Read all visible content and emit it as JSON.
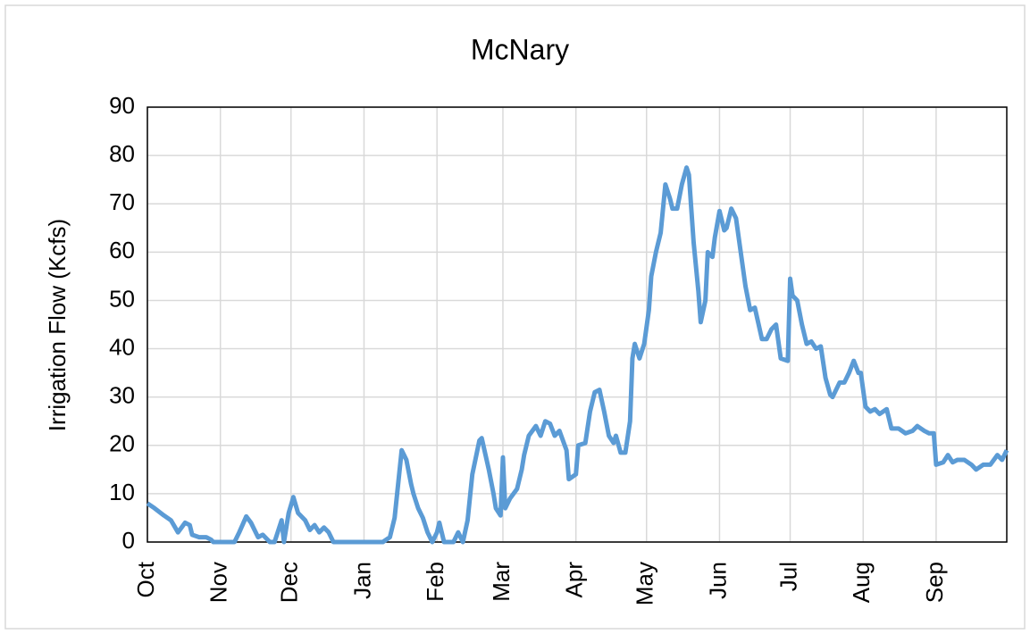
{
  "chart_data": {
    "type": "line",
    "title": "McNary",
    "ylabel": "Irrigation Flow (Kcfs)",
    "x": [
      0,
      3,
      7,
      10,
      13,
      16,
      18,
      19,
      22,
      25,
      27,
      28,
      37,
      39,
      42,
      44,
      47,
      49,
      52,
      54,
      57,
      58,
      60,
      62,
      64,
      67,
      69,
      71,
      73,
      75,
      77,
      79,
      100,
      103,
      105,
      108,
      110,
      112,
      113,
      115,
      117,
      119,
      121,
      123,
      124,
      126,
      130,
      132,
      134,
      136,
      138,
      141,
      142,
      145,
      147,
      148,
      150,
      151,
      152,
      154,
      157,
      159,
      160,
      162,
      165,
      167,
      169,
      171,
      173,
      175,
      178,
      179,
      182,
      183,
      186,
      188,
      190,
      192,
      194,
      196,
      198,
      199,
      201,
      203,
      205,
      206,
      207,
      209,
      211,
      213,
      214,
      216,
      218,
      220,
      222,
      223,
      225,
      227,
      229,
      230,
      232,
      234,
      235,
      237,
      238,
      240,
      241,
      243,
      245,
      246,
      248,
      250,
      252,
      254,
      256,
      258,
      261,
      263,
      265,
      267,
      269,
      272,
      273,
      274,
      276,
      278,
      280,
      282,
      284,
      286,
      288,
      290,
      291,
      294,
      296,
      298,
      300,
      302,
      303,
      305,
      307,
      309,
      311,
      314,
      316,
      319,
      322,
      325,
      327,
      330,
      332,
      334,
      335,
      338,
      340,
      342,
      344,
      347,
      350,
      352,
      355,
      358,
      361,
      363,
      365
    ],
    "series": [
      {
        "name": "McNary",
        "color": "#5b9bd5",
        "values": [
          8,
          7,
          5.5,
          4.5,
          2,
          4,
          3.5,
          1.5,
          1,
          1,
          0.5,
          0,
          0,
          2,
          5.3,
          4,
          1,
          1.5,
          0,
          0,
          4.5,
          0,
          6,
          9.3,
          6,
          4.5,
          2.5,
          3.5,
          2,
          3,
          2,
          0,
          0,
          1,
          5,
          19,
          17,
          12,
          10,
          7,
          5,
          2,
          0,
          2,
          4,
          0,
          0,
          2,
          0,
          4.5,
          14,
          21,
          21.5,
          15,
          10,
          7,
          5.5,
          17.5,
          7,
          9,
          11,
          15,
          18,
          22,
          24,
          22,
          25,
          24.5,
          22,
          23,
          19,
          13,
          14,
          20,
          20.5,
          27,
          31,
          31.5,
          27,
          22,
          20.5,
          22,
          18.5,
          18.5,
          25,
          38,
          41,
          38,
          41,
          48,
          55,
          60,
          64,
          74,
          71,
          69,
          69,
          74,
          77.5,
          76,
          62,
          52,
          45.5,
          50,
          60,
          59,
          63,
          68.5,
          64.5,
          65,
          69,
          67,
          60,
          53,
          48,
          48.5,
          42,
          42,
          44,
          45,
          38,
          37.5,
          54.5,
          51,
          50,
          45,
          41,
          41.5,
          40,
          40.5,
          34,
          30.5,
          30,
          33,
          33,
          35,
          37.5,
          35,
          35,
          28,
          27,
          27.5,
          26.5,
          27.5,
          23.5,
          23.5,
          22.5,
          23,
          24,
          23,
          22.5,
          22.5,
          16,
          16.5,
          18,
          16.5,
          17,
          17,
          16,
          15,
          16,
          16,
          18,
          17,
          19
        ]
      }
    ],
    "xlim": [
      0,
      365
    ],
    "xticks": [
      {
        "value": 0,
        "label": "Oct"
      },
      {
        "value": 31,
        "label": "Nov"
      },
      {
        "value": 61,
        "label": "Dec"
      },
      {
        "value": 92,
        "label": "Jan"
      },
      {
        "value": 123,
        "label": "Feb"
      },
      {
        "value": 151,
        "label": "Mar"
      },
      {
        "value": 182,
        "label": "Apr"
      },
      {
        "value": 212,
        "label": "May"
      },
      {
        "value": 243,
        "label": "Jun"
      },
      {
        "value": 273,
        "label": "Jul"
      },
      {
        "value": 304,
        "label": "Aug"
      },
      {
        "value": 335,
        "label": "Sep"
      }
    ],
    "ylim": [
      0,
      90
    ],
    "yticks": [
      0,
      10,
      20,
      30,
      40,
      50,
      60,
      70,
      80,
      90
    ],
    "grid": true
  }
}
